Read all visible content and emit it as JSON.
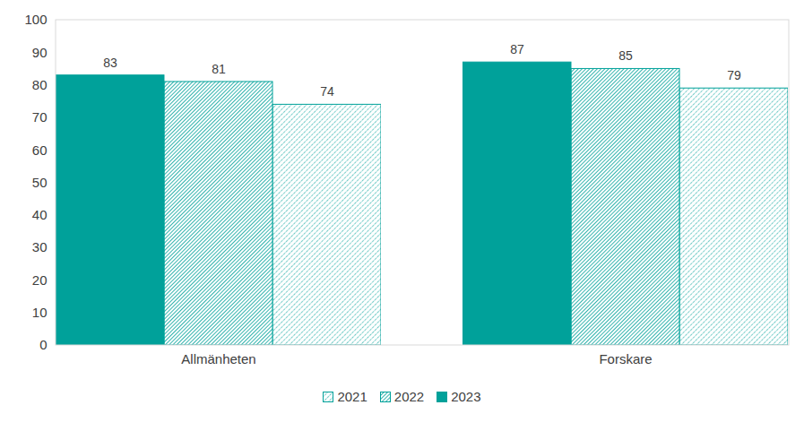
{
  "chart_data": {
    "type": "bar",
    "categories": [
      "Allmänheten",
      "Forskare"
    ],
    "series": [
      {
        "name": "2021",
        "color": "#00a19a",
        "values": [
          74,
          79
        ]
      },
      {
        "name": "2022",
        "color": "#00a19a",
        "values": [
          81,
          85
        ]
      },
      {
        "name": "2023",
        "color": "#00a19a",
        "values": [
          83,
          87
        ]
      }
    ],
    "ylim": [
      0,
      100
    ],
    "yticks": [
      0,
      10,
      20,
      30,
      40,
      50,
      60,
      70,
      80,
      90,
      100
    ],
    "grid": false,
    "legend": "bottom",
    "data_labels": true
  }
}
